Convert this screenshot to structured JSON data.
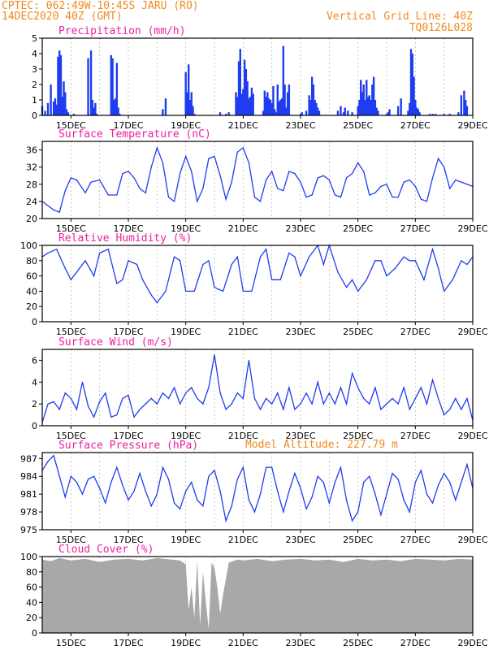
{
  "header": {
    "line1": "CPTEC:   062:49W-10:45S  JARU (RO)",
    "line2": "14DEC2020 40Z (GMT)",
    "right1": "Vertical Grid Line: 40Z",
    "right2": "TQ0126L028",
    "color": "#f08a1e"
  },
  "colors": {
    "title": "#ee1fa0",
    "series": "#1f3cf0",
    "cloud": "#a8a8a8",
    "grid": "#bbbbbb"
  },
  "date_labels": [
    "15DEC",
    "17DEC",
    "19DEC",
    "21DEC",
    "23DEC",
    "25DEC",
    "27DEC",
    "29DEC"
  ],
  "extra_note": "Model Altitude: 227.79 m",
  "chart_data": [
    {
      "id": "precip",
      "type": "bar",
      "title": "Precipitation (mm/h)",
      "ylim": [
        0,
        5
      ],
      "yticks": [
        0,
        1,
        2,
        3,
        4,
        5
      ],
      "x_days": [
        14.0,
        14.1,
        14.2,
        14.3,
        14.4,
        14.45,
        14.5,
        14.55,
        14.6,
        14.65,
        14.7,
        14.75,
        14.8,
        14.85,
        14.9,
        15.1,
        15.6,
        15.7,
        15.75,
        15.8,
        15.85,
        15.9,
        16.4,
        16.45,
        16.5,
        16.55,
        16.6,
        16.65,
        16.7,
        18.2,
        18.3,
        19.0,
        19.05,
        19.1,
        19.15,
        19.2,
        19.25,
        19.3,
        20.2,
        20.4,
        20.5,
        20.75,
        20.8,
        20.85,
        20.9,
        20.95,
        21.0,
        21.05,
        21.1,
        21.15,
        21.2,
        21.25,
        21.3,
        21.35,
        21.7,
        21.75,
        21.8,
        21.85,
        21.9,
        21.95,
        22.0,
        22.05,
        22.1,
        22.15,
        22.2,
        22.25,
        22.3,
        22.35,
        22.4,
        22.45,
        22.5,
        22.55,
        22.6,
        23.0,
        23.05,
        23.2,
        23.3,
        23.35,
        23.4,
        23.45,
        23.5,
        23.55,
        23.6,
        23.65,
        24.3,
        24.4,
        24.5,
        24.55,
        24.65,
        24.8,
        25.0,
        25.05,
        25.1,
        25.15,
        25.2,
        25.25,
        25.3,
        25.35,
        25.4,
        25.45,
        25.5,
        25.55,
        25.6,
        25.65,
        25.7,
        26.0,
        26.05,
        26.1,
        26.4,
        26.5,
        26.75,
        26.8,
        26.85,
        26.9,
        26.95,
        27.0,
        27.05,
        27.1,
        27.15,
        27.5,
        27.6,
        27.7,
        28.0,
        28.2,
        28.5,
        28.6,
        28.7,
        28.75,
        28.8
      ],
      "values": [
        0.6,
        0.3,
        0.8,
        2.0,
        0.9,
        1.1,
        0.7,
        3.8,
        4.2,
        3.9,
        1.2,
        2.2,
        1.5,
        0.4,
        0.2,
        0.1,
        3.7,
        4.2,
        1.0,
        0.5,
        0.8,
        0.1,
        3.9,
        3.7,
        1.0,
        1.1,
        3.4,
        0.5,
        0.1,
        0.4,
        1.1,
        2.8,
        1.5,
        3.3,
        1.0,
        1.5,
        0.6,
        0.1,
        0.2,
        0.1,
        0.2,
        1.5,
        1.2,
        3.5,
        4.3,
        1.4,
        1.7,
        3.6,
        3.0,
        2.2,
        1.1,
        1.2,
        1.8,
        1.4,
        0.3,
        1.6,
        1.2,
        1.5,
        1.1,
        1.0,
        0.8,
        1.9,
        0.4,
        0.2,
        2.0,
        0.9,
        1.0,
        1.1,
        4.5,
        2.0,
        0.5,
        1.5,
        2.0,
        0.1,
        0.2,
        0.3,
        1.3,
        1.0,
        2.5,
        2.0,
        1.0,
        0.8,
        0.5,
        0.3,
        0.3,
        0.6,
        0.2,
        0.5,
        0.3,
        0.2,
        0.6,
        1.0,
        2.3,
        1.5,
        2.0,
        1.0,
        2.3,
        1.2,
        1.3,
        1.0,
        2.0,
        2.5,
        1.0,
        0.5,
        0.3,
        0.1,
        0.2,
        0.4,
        0.6,
        1.1,
        0.3,
        0.8,
        4.3,
        4.0,
        2.5,
        1.0,
        0.5,
        0.4,
        0.2,
        0.1,
        0.1,
        0.1,
        0.1,
        0.1,
        0.2,
        1.3,
        1.6,
        1.0,
        0.6
      ]
    },
    {
      "id": "temp",
      "type": "line",
      "title": "Surface Temperature (nC)",
      "ylim": [
        20,
        38
      ],
      "yticks": [
        20,
        24,
        28,
        32,
        36
      ],
      "x_days": [
        14.0,
        14.2,
        14.4,
        14.6,
        14.8,
        15.0,
        15.2,
        15.5,
        15.7,
        16.0,
        16.3,
        16.6,
        16.8,
        17.0,
        17.2,
        17.4,
        17.6,
        17.8,
        18.0,
        18.2,
        18.4,
        18.6,
        18.8,
        19.0,
        19.2,
        19.4,
        19.6,
        19.8,
        20.0,
        20.2,
        20.4,
        20.6,
        20.8,
        21.0,
        21.2,
        21.4,
        21.6,
        21.8,
        22.0,
        22.2,
        22.4,
        22.6,
        22.8,
        23.0,
        23.2,
        23.4,
        23.6,
        23.8,
        24.0,
        24.2,
        24.4,
        24.6,
        24.8,
        25.0,
        25.2,
        25.4,
        25.6,
        25.8,
        26.0,
        26.2,
        26.4,
        26.6,
        26.8,
        27.0,
        27.2,
        27.4,
        27.6,
        27.8,
        28.0,
        28.2,
        28.4,
        28.6,
        28.8,
        29.0
      ],
      "values": [
        24.0,
        23.0,
        22.0,
        21.5,
        26.5,
        29.5,
        29.0,
        26.0,
        28.5,
        29.0,
        25.5,
        25.5,
        30.5,
        31.0,
        29.5,
        27.0,
        26.0,
        32.0,
        36.5,
        33.0,
        25.0,
        24.0,
        30.5,
        34.5,
        31.0,
        24.0,
        27.0,
        34.0,
        34.5,
        30.0,
        24.5,
        28.5,
        35.5,
        36.5,
        33.0,
        25.0,
        24.0,
        29.0,
        31.0,
        27.0,
        26.5,
        31.0,
        30.5,
        28.5,
        25.0,
        25.5,
        29.5,
        30.0,
        29.0,
        25.5,
        25.0,
        29.5,
        30.5,
        33.0,
        31.0,
        25.5,
        26.0,
        27.5,
        28.0,
        25.0,
        25.0,
        28.5,
        29.0,
        27.5,
        24.5,
        24.0,
        29.5,
        34.0,
        32.0,
        27.0,
        29.0,
        28.5,
        28.0,
        27.5
      ]
    },
    {
      "id": "rh",
      "type": "line",
      "title": "Relative Humidity (%)",
      "ylim": [
        0,
        100
      ],
      "yticks": [
        0,
        20,
        40,
        60,
        80,
        100
      ],
      "x_days": [
        14.0,
        14.2,
        14.5,
        14.8,
        15.0,
        15.3,
        15.5,
        15.8,
        16.0,
        16.3,
        16.6,
        16.8,
        17.0,
        17.3,
        17.5,
        17.8,
        18.0,
        18.3,
        18.6,
        18.8,
        19.0,
        19.3,
        19.6,
        19.8,
        20.0,
        20.3,
        20.6,
        20.8,
        21.0,
        21.3,
        21.6,
        21.8,
        22.0,
        22.3,
        22.6,
        22.8,
        23.0,
        23.3,
        23.6,
        23.8,
        24.0,
        24.3,
        24.6,
        24.8,
        25.0,
        25.3,
        25.6,
        25.8,
        26.0,
        26.3,
        26.6,
        26.8,
        27.0,
        27.3,
        27.6,
        27.8,
        28.0,
        28.3,
        28.6,
        28.8,
        29.0
      ],
      "values": [
        85,
        90,
        95,
        70,
        55,
        70,
        80,
        60,
        90,
        95,
        50,
        55,
        80,
        75,
        55,
        35,
        25,
        40,
        85,
        80,
        40,
        40,
        75,
        80,
        45,
        40,
        75,
        85,
        40,
        40,
        85,
        95,
        55,
        55,
        90,
        85,
        60,
        85,
        100,
        75,
        100,
        65,
        45,
        55,
        40,
        55,
        80,
        80,
        60,
        70,
        85,
        80,
        80,
        55,
        95,
        70,
        40,
        55,
        80,
        75,
        85
      ]
    },
    {
      "id": "wind",
      "type": "line",
      "title": "Surface Wind (m/s)",
      "ylim": [
        0,
        7
      ],
      "yticks": [
        0,
        2,
        4,
        6
      ],
      "x_days": [
        14.0,
        14.2,
        14.4,
        14.6,
        14.8,
        15.0,
        15.2,
        15.4,
        15.6,
        15.8,
        16.0,
        16.2,
        16.4,
        16.6,
        16.8,
        17.0,
        17.2,
        17.4,
        17.6,
        17.8,
        18.0,
        18.2,
        18.4,
        18.6,
        18.8,
        19.0,
        19.2,
        19.4,
        19.6,
        19.8,
        20.0,
        20.2,
        20.4,
        20.6,
        20.8,
        21.0,
        21.2,
        21.4,
        21.6,
        21.8,
        22.0,
        22.2,
        22.4,
        22.6,
        22.8,
        23.0,
        23.2,
        23.4,
        23.6,
        23.8,
        24.0,
        24.2,
        24.4,
        24.6,
        24.8,
        25.0,
        25.2,
        25.4,
        25.6,
        25.8,
        26.0,
        26.2,
        26.4,
        26.6,
        26.8,
        27.0,
        27.2,
        27.4,
        27.6,
        27.8,
        28.0,
        28.2,
        28.4,
        28.6,
        28.8,
        29.0
      ],
      "values": [
        0.3,
        2.0,
        2.2,
        1.5,
        3.0,
        2.5,
        1.5,
        4.0,
        1.8,
        0.8,
        2.2,
        3.0,
        0.8,
        1.0,
        2.5,
        2.8,
        0.8,
        1.5,
        2.0,
        2.5,
        2.0,
        3.0,
        2.5,
        3.5,
        2.0,
        3.0,
        3.5,
        2.5,
        2.0,
        3.5,
        6.5,
        3.0,
        1.5,
        2.0,
        3.0,
        2.5,
        6.0,
        2.5,
        1.5,
        2.5,
        2.0,
        3.0,
        1.5,
        3.5,
        1.5,
        2.0,
        3.0,
        2.0,
        4.0,
        2.0,
        3.0,
        2.0,
        3.5,
        2.0,
        4.8,
        3.5,
        2.5,
        2.0,
        3.5,
        1.5,
        2.0,
        2.5,
        2.0,
        3.5,
        1.5,
        2.5,
        3.5,
        2.0,
        4.2,
        2.5,
        1.0,
        1.5,
        2.5,
        1.5,
        2.5,
        0.5
      ]
    },
    {
      "id": "pres",
      "type": "line",
      "title": "Surface Pressure (hPa)",
      "ylim": [
        975,
        988
      ],
      "yticks": [
        975,
        978,
        981,
        984,
        987
      ],
      "x_days": [
        14.0,
        14.2,
        14.4,
        14.6,
        14.8,
        15.0,
        15.2,
        15.4,
        15.6,
        15.8,
        16.0,
        16.2,
        16.4,
        16.6,
        16.8,
        17.0,
        17.2,
        17.4,
        17.6,
        17.8,
        18.0,
        18.2,
        18.4,
        18.6,
        18.8,
        19.0,
        19.2,
        19.4,
        19.6,
        19.8,
        20.0,
        20.2,
        20.4,
        20.6,
        20.8,
        21.0,
        21.2,
        21.4,
        21.6,
        21.8,
        22.0,
        22.2,
        22.4,
        22.6,
        22.8,
        23.0,
        23.2,
        23.4,
        23.6,
        23.8,
        24.0,
        24.2,
        24.4,
        24.6,
        24.8,
        25.0,
        25.2,
        25.4,
        25.6,
        25.8,
        26.0,
        26.2,
        26.4,
        26.6,
        26.8,
        27.0,
        27.2,
        27.4,
        27.6,
        27.8,
        28.0,
        28.2,
        28.4,
        28.6,
        28.8,
        29.0
      ],
      "values": [
        985.0,
        986.5,
        987.5,
        984.0,
        980.5,
        984.0,
        983.0,
        981.0,
        983.5,
        984.0,
        982.0,
        979.5,
        983.0,
        985.5,
        982.5,
        980.0,
        981.5,
        984.5,
        981.5,
        979.0,
        981.0,
        985.5,
        983.5,
        979.5,
        978.5,
        981.5,
        983.0,
        980.0,
        979.0,
        984.0,
        985.0,
        981.5,
        976.5,
        979.0,
        983.5,
        985.5,
        980.0,
        978.0,
        981.0,
        985.5,
        985.5,
        981.5,
        978.0,
        981.5,
        984.5,
        982.0,
        978.5,
        980.5,
        984.0,
        983.0,
        979.5,
        983.0,
        985.5,
        980.0,
        976.5,
        978.0,
        983.0,
        984.0,
        981.0,
        977.5,
        981.0,
        984.5,
        983.5,
        980.0,
        978.0,
        983.0,
        985.0,
        981.0,
        979.5,
        982.5,
        984.5,
        983.0,
        980.0,
        983.0,
        986.0,
        982.0
      ]
    },
    {
      "id": "cloud",
      "type": "area",
      "title": "Cloud Cover (%)",
      "ylim": [
        0,
        100
      ],
      "yticks": [
        0,
        20,
        40,
        60,
        80,
        100
      ],
      "x_days": [
        14.0,
        14.3,
        14.6,
        15.0,
        15.5,
        16.0,
        16.5,
        17.0,
        17.5,
        18.0,
        18.5,
        18.8,
        19.0,
        19.1,
        19.2,
        19.3,
        19.4,
        19.5,
        19.6,
        19.7,
        19.8,
        19.9,
        20.0,
        20.1,
        20.2,
        20.3,
        20.5,
        20.8,
        21.0,
        21.5,
        22.0,
        22.5,
        23.0,
        23.5,
        24.0,
        24.5,
        25.0,
        25.5,
        26.0,
        26.5,
        27.0,
        27.5,
        28.0,
        28.5,
        29.0
      ],
      "values": [
        96,
        94,
        98,
        95,
        97,
        93,
        96,
        97,
        95,
        98,
        96,
        95,
        90,
        30,
        60,
        20,
        95,
        10,
        80,
        40,
        5,
        92,
        85,
        60,
        25,
        50,
        92,
        96,
        95,
        97,
        94,
        96,
        97,
        95,
        96,
        93,
        97,
        95,
        96,
        94,
        97,
        96,
        95,
        97,
        96
      ]
    }
  ]
}
